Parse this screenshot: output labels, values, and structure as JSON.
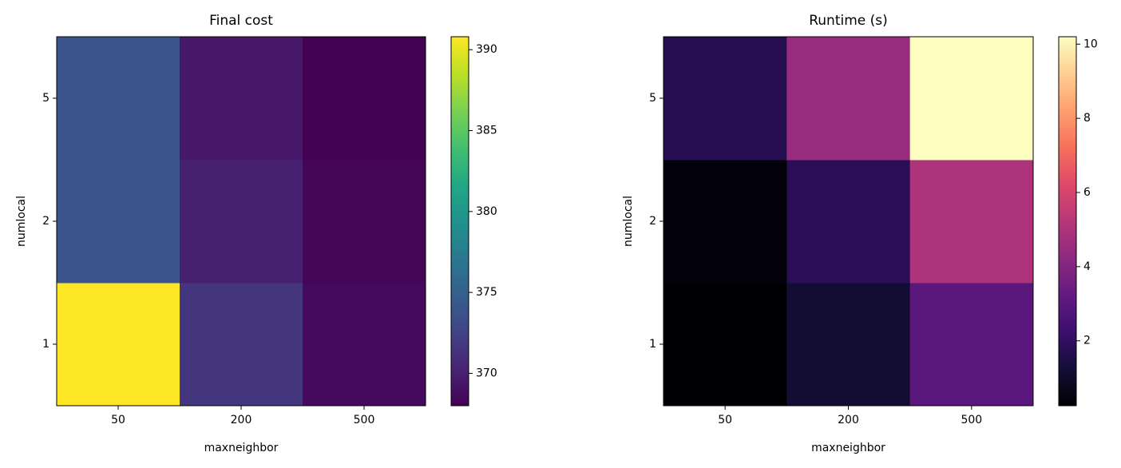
{
  "chart_data": [
    {
      "type": "heatmap",
      "title": "Final cost",
      "xlabel": "maxneighbor",
      "ylabel": "numlocal",
      "x": [
        "50",
        "200",
        "500"
      ],
      "y": [
        "1",
        "2",
        "5"
      ],
      "values": [
        [
          390.8,
          371.5,
          368.6
        ],
        [
          374.0,
          370.0,
          368.3
        ],
        [
          373.8,
          369.5,
          368.0
        ]
      ],
      "colormap": "viridis",
      "clim": [
        368.0,
        390.8
      ],
      "cticks": [
        370,
        375,
        380,
        385,
        390
      ]
    },
    {
      "type": "heatmap",
      "title": "Runtime (s)",
      "xlabel": "maxneighbor",
      "ylabel": "numlocal",
      "x": [
        "50",
        "200",
        "500"
      ],
      "y": [
        "1",
        "2",
        "5"
      ],
      "values": [
        [
          0.25,
          1.2,
          3.0
        ],
        [
          0.4,
          1.8,
          5.0
        ],
        [
          1.7,
          4.5,
          10.2
        ]
      ],
      "colormap": "magma",
      "clim": [
        0.25,
        10.2
      ],
      "cticks": [
        2,
        4,
        6,
        8,
        10
      ]
    }
  ]
}
